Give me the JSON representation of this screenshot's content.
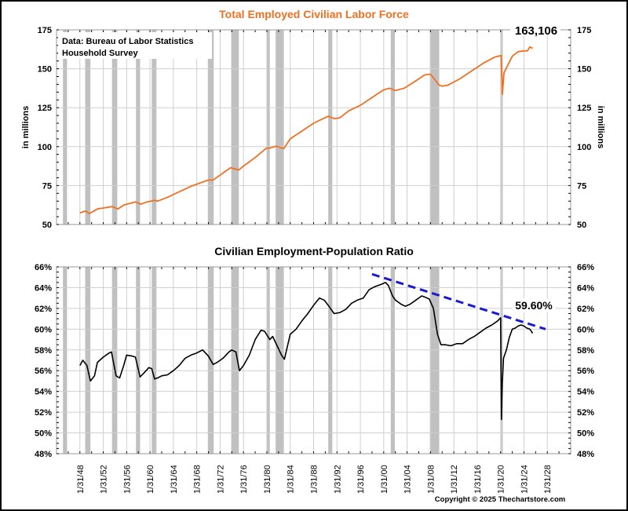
{
  "chart_data": [
    {
      "type": "line",
      "title": "Total Employed Civilian Labor Force",
      "title_color": "#f07020",
      "ylabel": "in millions",
      "ylabel_right": "in millions",
      "ylim": [
        50,
        175
      ],
      "yticks": [
        50,
        75,
        100,
        125,
        150,
        175
      ],
      "grid": true,
      "source_note": [
        "Data:  Bureau of Labor Statistics",
        "Household Survey"
      ],
      "latest_label": "163,106",
      "series": [
        {
          "name": "Total Employed",
          "color": "#f07020",
          "x": [
            1948.0,
            1949.0,
            1949.6,
            1951.0,
            1953.5,
            1954.5,
            1955.5,
            1957.5,
            1958.4,
            1959.5,
            1960.8,
            1961.3,
            1963.0,
            1965.0,
            1967.0,
            1969.9,
            1970.8,
            1973.8,
            1975.2,
            1976.0,
            1978.0,
            1979.9,
            1980.6,
            1981.6,
            1982.9,
            1984.0,
            1986.0,
            1988.0,
            1990.5,
            1991.5,
            1992.5,
            1994.0,
            1996.0,
            1998.0,
            2000.0,
            2001.0,
            2002.0,
            2003.5,
            2005.0,
            2007.0,
            2008.0,
            2009.5,
            2010.0,
            2011.0,
            2013.0,
            2015.0,
            2017.0,
            2019.0,
            2020.1,
            2020.3,
            2020.6,
            2021.0,
            2022.0,
            2023.0,
            2024.0,
            2024.6,
            2025.0,
            2025.5
          ],
          "values": [
            57.5,
            58.6,
            57.0,
            60.0,
            61.5,
            60.0,
            62.5,
            64.5,
            63.0,
            64.5,
            65.5,
            65.0,
            67.5,
            71.0,
            74.5,
            78.5,
            78.6,
            86.5,
            85.0,
            87.5,
            93.0,
            99.0,
            99.2,
            100.3,
            98.8,
            105.0,
            110.0,
            115.0,
            119.5,
            118.0,
            118.5,
            123.0,
            126.5,
            131.5,
            136.5,
            137.5,
            136.0,
            137.5,
            141.0,
            146.0,
            146.5,
            139.5,
            138.8,
            139.5,
            143.5,
            148.5,
            153.5,
            157.5,
            158.5,
            133.5,
            147.5,
            150.5,
            158.0,
            161.0,
            161.5,
            161.5,
            164.0,
            163.1
          ]
        }
      ]
    },
    {
      "type": "line",
      "title": "Civilian Employment-Population Ratio",
      "ylim": [
        48,
        66
      ],
      "yticks": [
        "48%",
        "50%",
        "52%",
        "54%",
        "56%",
        "58%",
        "60%",
        "62%",
        "64%",
        "66%"
      ],
      "grid": true,
      "latest_label": "59.60%",
      "trendline": {
        "name": "Downtrend",
        "color": "#1a1ad0",
        "x": [
          1998.0,
          2027.7
        ],
        "values": [
          65.3,
          60.0
        ]
      },
      "series": [
        {
          "name": "Employment-Population Ratio",
          "color": "#000000",
          "x": [
            1948.0,
            1948.5,
            1949.2,
            1949.8,
            1950.5,
            1951.0,
            1952.0,
            1953.0,
            1953.4,
            1954.2,
            1954.8,
            1955.5,
            1956.0,
            1957.0,
            1957.5,
            1958.3,
            1959.0,
            1959.8,
            1960.3,
            1960.8,
            1961.3,
            1962.0,
            1963.0,
            1964.0,
            1965.0,
            1966.0,
            1967.0,
            1968.0,
            1969.0,
            1970.0,
            1970.8,
            1971.5,
            1972.5,
            1973.5,
            1974.0,
            1974.7,
            1975.3,
            1976.0,
            1977.0,
            1978.0,
            1979.0,
            1979.6,
            1980.5,
            1981.0,
            1981.5,
            1982.5,
            1983.0,
            1984.0,
            1985.0,
            1986.0,
            1987.0,
            1988.0,
            1989.0,
            1989.8,
            1990.5,
            1991.5,
            1992.5,
            1993.5,
            1994.5,
            1995.5,
            1996.5,
            1997.5,
            1998.5,
            1999.5,
            2000.3,
            2000.8,
            2001.5,
            2002.0,
            2003.0,
            2003.7,
            2004.5,
            2005.5,
            2006.5,
            2007.0,
            2007.8,
            2008.5,
            2009.2,
            2009.8,
            2010.5,
            2011.5,
            2012.5,
            2013.5,
            2014.5,
            2015.5,
            2016.5,
            2017.5,
            2018.5,
            2019.5,
            2020.0,
            2020.15,
            2020.3,
            2020.5,
            2021.0,
            2021.5,
            2022.0,
            2022.5,
            2023.0,
            2023.5,
            2024.0,
            2024.5,
            2025.0,
            2025.5
          ],
          "values": [
            56.5,
            57.0,
            56.5,
            55.0,
            55.5,
            56.8,
            57.3,
            57.7,
            57.8,
            55.5,
            55.3,
            56.5,
            57.5,
            57.4,
            57.3,
            55.4,
            55.8,
            56.3,
            56.2,
            55.2,
            55.3,
            55.5,
            55.6,
            56.0,
            56.5,
            57.2,
            57.5,
            57.7,
            58.0,
            57.4,
            56.6,
            56.8,
            57.2,
            57.8,
            58.0,
            57.8,
            56.0,
            56.5,
            57.5,
            59.0,
            59.9,
            59.8,
            59.0,
            59.3,
            58.7,
            57.5,
            57.1,
            59.5,
            60.0,
            60.8,
            61.5,
            62.3,
            63.0,
            62.8,
            62.3,
            61.5,
            61.6,
            61.9,
            62.5,
            62.8,
            63.0,
            63.8,
            64.1,
            64.3,
            64.5,
            64.2,
            63.2,
            62.8,
            62.4,
            62.2,
            62.4,
            62.8,
            63.2,
            63.1,
            62.9,
            62.0,
            59.5,
            58.5,
            58.5,
            58.4,
            58.6,
            58.6,
            59.0,
            59.3,
            59.7,
            60.1,
            60.4,
            60.8,
            61.1,
            51.3,
            54.8,
            57.2,
            58.0,
            59.2,
            60.0,
            60.1,
            60.3,
            60.4,
            60.3,
            60.1,
            60.0,
            59.6
          ]
        }
      ]
    }
  ],
  "x_axis": {
    "range": [
      1944.0,
      2032.0
    ],
    "tick_years": [
      1948,
      1952,
      1956,
      1960,
      1964,
      1968,
      1972,
      1976,
      1980,
      1984,
      1988,
      1992,
      1996,
      2000,
      2004,
      2008,
      2012,
      2016,
      2020,
      2024,
      2028
    ],
    "tick_labels": [
      "1/31/48",
      "1/31/52",
      "1/31/56",
      "1/31/60",
      "1/31/64",
      "1/31/68",
      "1/31/72",
      "1/31/76",
      "1/31/80",
      "1/31/84",
      "1/31/88",
      "1/31/92",
      "1/31/96",
      "1/31/00",
      "1/31/04",
      "1/31/08",
      "1/31/12",
      "1/31/16",
      "1/31/20",
      "1/31/24",
      "1/31/28"
    ]
  },
  "recessions": [
    [
      1945.1,
      1945.8
    ],
    [
      1948.9,
      1949.8
    ],
    [
      1953.5,
      1954.4
    ],
    [
      1957.6,
      1958.3
    ],
    [
      1960.3,
      1961.1
    ],
    [
      1969.9,
      1970.9
    ],
    [
      1973.9,
      1975.2
    ],
    [
      1980.0,
      1980.5
    ],
    [
      1981.5,
      1982.9
    ],
    [
      1990.5,
      1991.2
    ],
    [
      2001.2,
      2001.9
    ],
    [
      2007.9,
      2009.5
    ],
    [
      2020.1,
      2020.3
    ]
  ],
  "recession_color": "#c0c0c0",
  "copyright": "Copyright © 2025 Thechartstore.com"
}
